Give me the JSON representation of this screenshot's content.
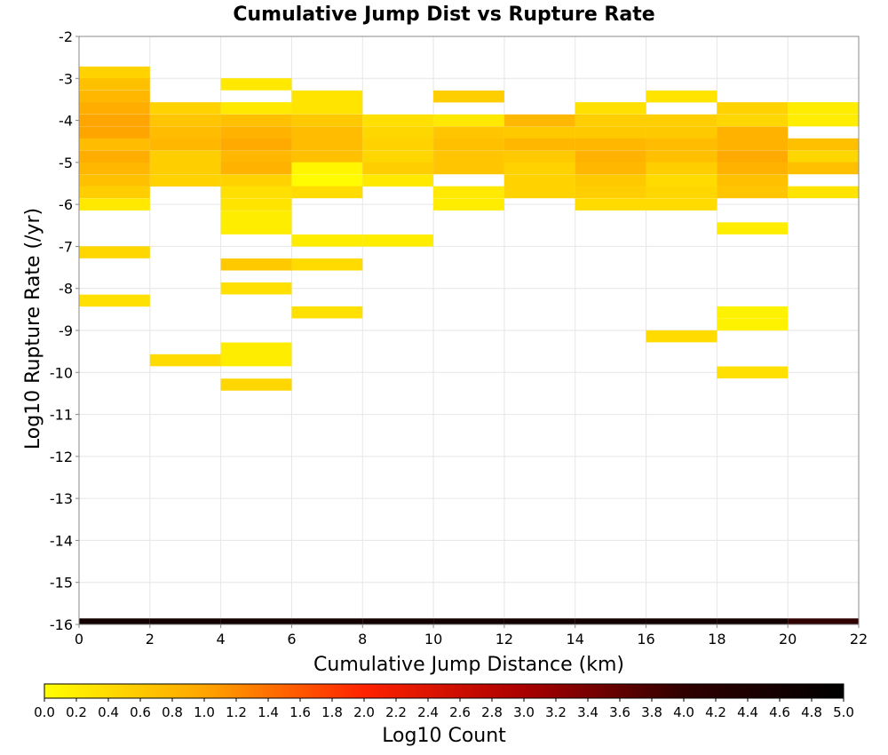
{
  "chart_data": {
    "type": "heatmap",
    "title": "Cumulative Jump Dist vs Rupture Rate",
    "xlabel": "Cumulative Jump Distance (km)",
    "ylabel": "Log10 Rupture Rate (/yr)",
    "xlim": [
      0,
      22
    ],
    "ylim": [
      -16,
      -2
    ],
    "x_ticks": [
      0,
      2,
      4,
      6,
      8,
      10,
      12,
      14,
      16,
      18,
      20,
      22
    ],
    "y_ticks": [
      -2,
      -3,
      -4,
      -5,
      -6,
      -7,
      -8,
      -9,
      -10,
      -11,
      -12,
      -13,
      -14,
      -15,
      -16
    ],
    "grid": true,
    "x_bin_width": 2,
    "y_bin_height": 0.286,
    "colorbar": {
      "label": "Log10 Count",
      "min": 0.0,
      "max": 5.0,
      "ticks": [
        "0.0",
        "0.2",
        "0.4",
        "0.6",
        "0.8",
        "1.0",
        "1.2",
        "1.4",
        "1.6",
        "1.8",
        "2.0",
        "2.2",
        "2.4",
        "2.6",
        "2.8",
        "3.0",
        "3.2",
        "3.4",
        "3.6",
        "3.8",
        "4.0",
        "4.2",
        "4.4",
        "4.6",
        "4.8",
        "5.0"
      ],
      "placement": "bottom",
      "colors": [
        "#ffff00",
        "#ffa500",
        "#ff2200",
        "#aa0000",
        "#300000",
        "#000000"
      ]
    },
    "cells": [
      [
        0,
        -2.86,
        0.5
      ],
      [
        0,
        -3.14,
        0.7
      ],
      [
        0,
        -3.43,
        0.8
      ],
      [
        0,
        -3.71,
        0.9
      ],
      [
        0,
        -4.0,
        1.0
      ],
      [
        0,
        -4.29,
        1.0
      ],
      [
        0,
        -4.57,
        0.75
      ],
      [
        0,
        -4.86,
        0.9
      ],
      [
        0,
        -5.14,
        0.8
      ],
      [
        0,
        -5.43,
        0.7
      ],
      [
        0,
        -5.71,
        0.55
      ],
      [
        0,
        -6.0,
        0.25
      ],
      [
        0,
        -7.14,
        0.45
      ],
      [
        0,
        -8.29,
        0.35
      ],
      [
        2,
        -3.71,
        0.5
      ],
      [
        2,
        -4.0,
        0.65
      ],
      [
        2,
        -4.29,
        0.75
      ],
      [
        2,
        -4.57,
        0.8
      ],
      [
        2,
        -4.86,
        0.55
      ],
      [
        2,
        -5.14,
        0.55
      ],
      [
        2,
        -5.43,
        0.5
      ],
      [
        2,
        -9.71,
        0.4
      ],
      [
        4,
        -3.14,
        0.25
      ],
      [
        4,
        -3.71,
        0.25
      ],
      [
        4,
        -4.0,
        0.7
      ],
      [
        4,
        -4.29,
        0.85
      ],
      [
        4,
        -4.57,
        0.95
      ],
      [
        4,
        -4.86,
        0.8
      ],
      [
        4,
        -5.14,
        0.85
      ],
      [
        4,
        -5.43,
        0.5
      ],
      [
        4,
        -5.71,
        0.35
      ],
      [
        4,
        -6.0,
        0.3
      ],
      [
        4,
        -6.29,
        0.2
      ],
      [
        4,
        -6.57,
        0.2
      ],
      [
        4,
        -7.43,
        0.6
      ],
      [
        4,
        -8.0,
        0.35
      ],
      [
        4,
        -9.43,
        0.2
      ],
      [
        4,
        -9.71,
        0.2
      ],
      [
        4,
        -10.29,
        0.45
      ],
      [
        6,
        -3.43,
        0.3
      ],
      [
        6,
        -3.71,
        0.3
      ],
      [
        6,
        -4.0,
        0.6
      ],
      [
        6,
        -4.29,
        0.75
      ],
      [
        6,
        -4.57,
        0.75
      ],
      [
        6,
        -4.86,
        0.7
      ],
      [
        6,
        -5.14,
        0.1
      ],
      [
        6,
        -5.43,
        0.05
      ],
      [
        6,
        -5.71,
        0.4
      ],
      [
        6,
        -6.86,
        0.2
      ],
      [
        6,
        -7.43,
        0.4
      ],
      [
        6,
        -8.57,
        0.35
      ],
      [
        8,
        -4.0,
        0.35
      ],
      [
        8,
        -4.29,
        0.45
      ],
      [
        8,
        -4.57,
        0.5
      ],
      [
        8,
        -4.86,
        0.45
      ],
      [
        8,
        -5.14,
        0.55
      ],
      [
        8,
        -5.43,
        0.25
      ],
      [
        8,
        -6.86,
        0.2
      ],
      [
        10,
        -3.43,
        0.55
      ],
      [
        10,
        -4.0,
        0.25
      ],
      [
        10,
        -4.29,
        0.65
      ],
      [
        10,
        -4.57,
        0.7
      ],
      [
        10,
        -4.86,
        0.65
      ],
      [
        10,
        -5.14,
        0.65
      ],
      [
        10,
        -5.71,
        0.25
      ],
      [
        10,
        -6.0,
        0.2
      ],
      [
        12,
        -4.0,
        0.8
      ],
      [
        12,
        -4.29,
        0.6
      ],
      [
        12,
        -4.57,
        0.8
      ],
      [
        12,
        -4.86,
        0.6
      ],
      [
        12,
        -5.14,
        0.5
      ],
      [
        12,
        -5.43,
        0.5
      ],
      [
        12,
        -5.71,
        0.5
      ],
      [
        14,
        -3.71,
        0.35
      ],
      [
        14,
        -4.0,
        0.55
      ],
      [
        14,
        -4.29,
        0.6
      ],
      [
        14,
        -4.57,
        0.8
      ],
      [
        14,
        -4.86,
        0.85
      ],
      [
        14,
        -5.14,
        0.8
      ],
      [
        14,
        -5.43,
        0.6
      ],
      [
        14,
        -5.71,
        0.55
      ],
      [
        14,
        -6.0,
        0.4
      ],
      [
        16,
        -3.43,
        0.3
      ],
      [
        16,
        -4.0,
        0.55
      ],
      [
        16,
        -4.29,
        0.6
      ],
      [
        16,
        -4.57,
        0.75
      ],
      [
        16,
        -4.86,
        0.7
      ],
      [
        16,
        -5.14,
        0.55
      ],
      [
        16,
        -5.43,
        0.4
      ],
      [
        16,
        -5.71,
        0.45
      ],
      [
        16,
        -6.0,
        0.4
      ],
      [
        16,
        -9.14,
        0.4
      ],
      [
        18,
        -3.71,
        0.5
      ],
      [
        18,
        -4.0,
        0.45
      ],
      [
        18,
        -4.29,
        0.85
      ],
      [
        18,
        -4.57,
        0.85
      ],
      [
        18,
        -4.86,
        0.95
      ],
      [
        18,
        -5.14,
        0.85
      ],
      [
        18,
        -5.43,
        0.7
      ],
      [
        18,
        -5.71,
        0.65
      ],
      [
        18,
        -6.57,
        0.2
      ],
      [
        18,
        -8.57,
        0.15
      ],
      [
        18,
        -8.86,
        0.15
      ],
      [
        18,
        -10.0,
        0.35
      ],
      [
        20,
        -3.71,
        0.2
      ],
      [
        20,
        -4.0,
        0.2
      ],
      [
        20,
        -4.57,
        0.7
      ],
      [
        20,
        -4.86,
        0.45
      ],
      [
        20,
        -5.14,
        0.7
      ],
      [
        20,
        -5.71,
        0.3
      ]
    ],
    "bottom_row": {
      "y": -16,
      "cells": [
        [
          0,
          4.6
        ],
        [
          2,
          4.6
        ],
        [
          4,
          4.6
        ],
        [
          6,
          4.6
        ],
        [
          8,
          4.6
        ],
        [
          10,
          4.6
        ],
        [
          12,
          4.6
        ],
        [
          14,
          4.6
        ],
        [
          16,
          4.6
        ],
        [
          18,
          4.6
        ],
        [
          20,
          4.0
        ]
      ]
    }
  }
}
